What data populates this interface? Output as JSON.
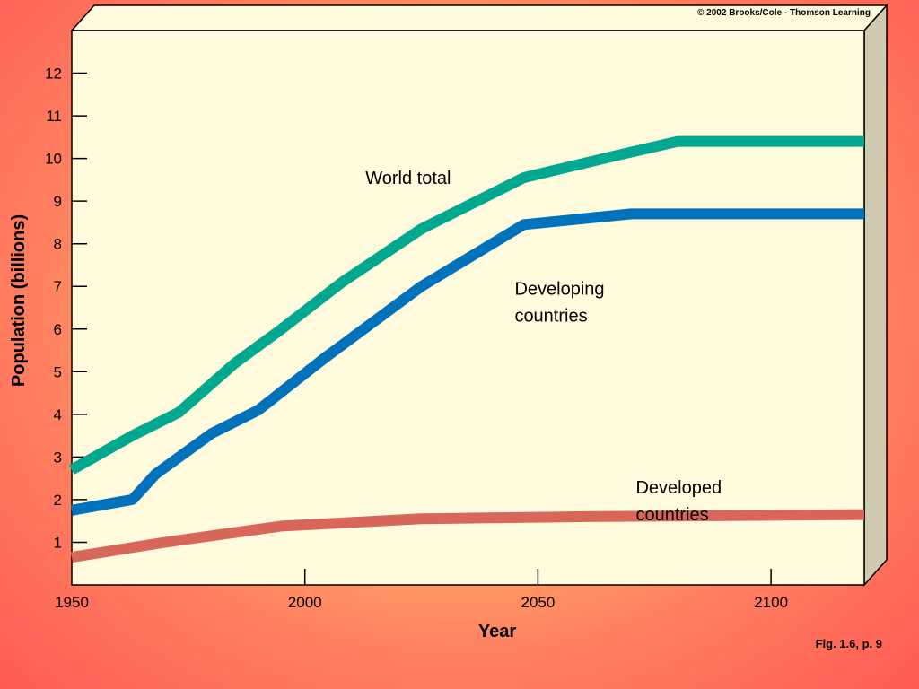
{
  "copyright": "© 2002 Brooks/Cole - Thomson Learning",
  "figure_caption": "Fig. 1.6, p. 9",
  "colors": {
    "plot_bg": "#fffbdc",
    "side_panel": "#cfcab0",
    "world_total": "#00a88f",
    "developing": "#0072bc",
    "developed": "#d9665a"
  },
  "chart_data": {
    "type": "line",
    "title": "",
    "xlabel": "Year",
    "ylabel": "Population (billions)",
    "xlim": [
      1950,
      2120
    ],
    "ylim": [
      0,
      13
    ],
    "xticks": [
      1950,
      2000,
      2050,
      2100
    ],
    "yticks": [
      1,
      2,
      3,
      4,
      5,
      6,
      7,
      8,
      9,
      10,
      11,
      12
    ],
    "grid": false,
    "series": [
      {
        "name": "World total",
        "color_key": "world_total",
        "x": [
          1950,
          1963,
          1973,
          1985,
          1995,
          2008,
          2025,
          2047,
          2068,
          2080,
          2120
        ],
        "y": [
          2.7,
          3.5,
          4.05,
          5.2,
          6.0,
          7.1,
          8.35,
          9.55,
          10.1,
          10.4,
          10.4
        ]
      },
      {
        "name": "Developing countries",
        "color_key": "developing",
        "x": [
          1950,
          1963,
          1968,
          1980,
          1990,
          2004,
          2025,
          2047,
          2070,
          2120
        ],
        "y": [
          1.75,
          2.0,
          2.6,
          3.55,
          4.1,
          5.3,
          7.0,
          8.45,
          8.7,
          8.7
        ]
      },
      {
        "name": "Developed countries",
        "color_key": "developed",
        "x": [
          1950,
          1970,
          1995,
          2025,
          2060,
          2120
        ],
        "y": [
          0.65,
          1.0,
          1.38,
          1.55,
          1.6,
          1.65
        ]
      }
    ],
    "annotations": [
      {
        "lines": [
          "World total"
        ],
        "x": 2013,
        "y": 9.4
      },
      {
        "lines": [
          "Developing",
          "countries"
        ],
        "x": 2045,
        "y": 6.8
      },
      {
        "lines": [
          "Developed",
          "countries"
        ],
        "x": 2071,
        "y": 2.15
      }
    ]
  }
}
